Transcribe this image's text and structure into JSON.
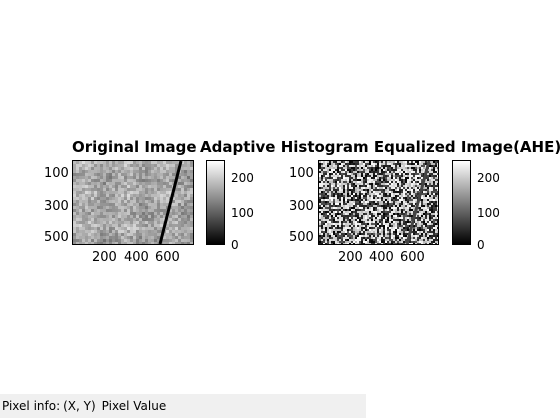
{
  "panels": [
    {
      "title": "Original Image",
      "y_ticks": [
        "100",
        "300",
        "500"
      ],
      "x_ticks": [
        "200",
        "400",
        "600"
      ],
      "colorbar_ticks": [
        "200",
        "100",
        "0"
      ]
    },
    {
      "title": "Adaptive Histogram Equalized Image(AHE)",
      "y_ticks": [
        "100",
        "300",
        "500"
      ],
      "x_ticks": [
        "200",
        "400",
        "600"
      ],
      "colorbar_ticks": [
        "200",
        "100",
        "0"
      ]
    }
  ],
  "status": {
    "label": "Pixel info:",
    "coords": "(X, Y)",
    "value_label": "Pixel Value"
  },
  "colors": {
    "status_bg": "#f0f0f0",
    "original_base": "#a8a8a8",
    "ahe_base": "#7a7a7a"
  }
}
